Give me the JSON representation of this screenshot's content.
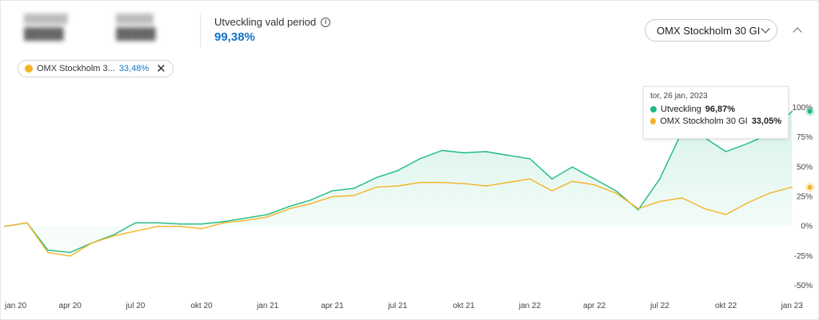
{
  "header": {
    "performance_label": "Utveckling vald period",
    "performance_value": "99,38%",
    "benchmark_dropdown": "OMX Stockholm 30 GI"
  },
  "chip": {
    "label": "OMX Stockholm 3...",
    "value": "33,48%"
  },
  "tooltip": {
    "date": "tor, 26 jan, 2023",
    "series1_label": "Utveckling",
    "series1_value": "96,87%",
    "series2_label": "OMX Stockholm 30 GI",
    "series2_value": "33,05%"
  },
  "colors": {
    "series1": "#1dbb7f",
    "series2": "#f5b324",
    "accent": "#1473c6"
  },
  "icons": [
    "info-icon",
    "chevron-down-icon",
    "chevron-up-icon",
    "close-icon"
  ],
  "chart_data": {
    "type": "line",
    "ylim": [
      -50,
      100
    ],
    "yticks": [
      100,
      75,
      50,
      25,
      0,
      -25,
      -50
    ],
    "ytick_labels": [
      "100%",
      "75%",
      "50%",
      "25%",
      "0%",
      "-25%",
      "-50%"
    ],
    "xticks": [
      "2020-01",
      "2020-04",
      "2020-07",
      "2020-10",
      "2021-01",
      "2021-04",
      "2021-07",
      "2021-10",
      "2022-01",
      "2022-04",
      "2022-07",
      "2022-10",
      "2023-01"
    ],
    "xtick_labels": [
      "jan 20",
      "apr 20",
      "jul 20",
      "okt 20",
      "jan 21",
      "apr 21",
      "jul 21",
      "okt 21",
      "jan 22",
      "apr 22",
      "jul 22",
      "okt 22",
      "jan 23"
    ],
    "series": [
      {
        "name": "Utveckling",
        "x": [
          "2020-01",
          "2020-02",
          "2020-03",
          "2020-04",
          "2020-05",
          "2020-06",
          "2020-07",
          "2020-08",
          "2020-09",
          "2020-10",
          "2020-11",
          "2020-12",
          "2021-01",
          "2021-02",
          "2021-03",
          "2021-04",
          "2021-05",
          "2021-06",
          "2021-07",
          "2021-08",
          "2021-09",
          "2021-10",
          "2021-11",
          "2021-12",
          "2022-01",
          "2022-02",
          "2022-03",
          "2022-04",
          "2022-05",
          "2022-06",
          "2022-07",
          "2022-08",
          "2022-09",
          "2022-10",
          "2022-11",
          "2022-12",
          "2023-01"
        ],
        "values": [
          0,
          3,
          -20,
          -22,
          -14,
          -7,
          3,
          3,
          2,
          2,
          4,
          7,
          10,
          17,
          22,
          30,
          32,
          41,
          47,
          57,
          64,
          62,
          63,
          60,
          57,
          40,
          50,
          40,
          30,
          14,
          40,
          80,
          75,
          63,
          70,
          78,
          97
        ]
      },
      {
        "name": "OMX Stockholm 30 GI",
        "x": [
          "2020-01",
          "2020-02",
          "2020-03",
          "2020-04",
          "2020-05",
          "2020-06",
          "2020-07",
          "2020-08",
          "2020-09",
          "2020-10",
          "2020-11",
          "2020-12",
          "2021-01",
          "2021-02",
          "2021-03",
          "2021-04",
          "2021-05",
          "2021-06",
          "2021-07",
          "2021-08",
          "2021-09",
          "2021-10",
          "2021-11",
          "2021-12",
          "2022-01",
          "2022-02",
          "2022-03",
          "2022-04",
          "2022-05",
          "2022-06",
          "2022-07",
          "2022-08",
          "2022-09",
          "2022-10",
          "2022-11",
          "2022-12",
          "2023-01"
        ],
        "values": [
          0,
          3,
          -22,
          -25,
          -14,
          -8,
          -4,
          0,
          0,
          -2,
          3,
          5,
          8,
          15,
          19,
          25,
          26,
          33,
          34,
          37,
          37,
          36,
          34,
          37,
          40,
          30,
          38,
          35,
          28,
          15,
          21,
          24,
          15,
          10,
          20,
          28,
          33
        ]
      }
    ],
    "tooltip_x": "2023-01-26",
    "grid": false,
    "legend": "none"
  }
}
